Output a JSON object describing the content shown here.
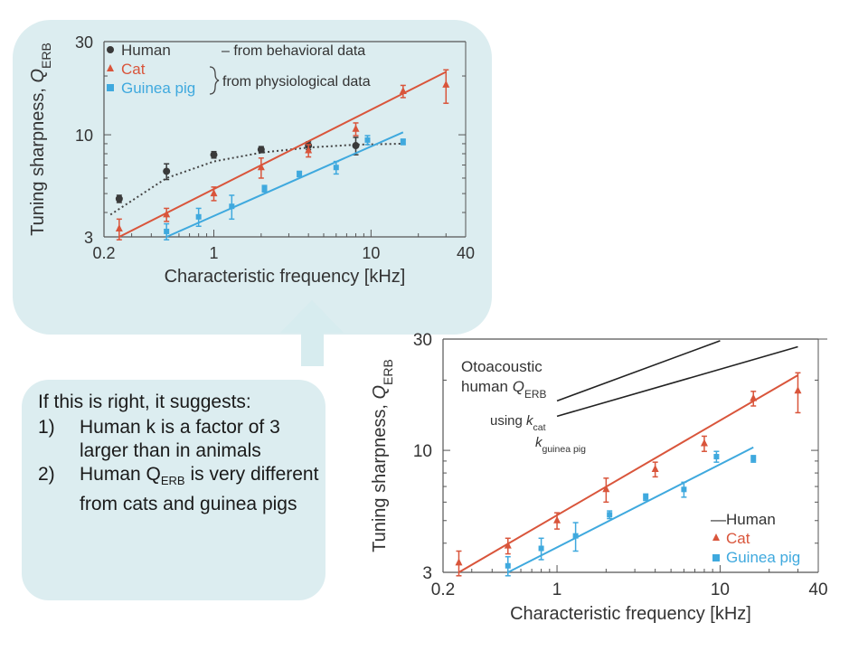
{
  "callout": {
    "intro": "If this is right, it suggests:",
    "items": [
      {
        "num": "1)",
        "text": "Human k is a factor of 3 larger than in animals"
      },
      {
        "num": "2)",
        "pre": "Human Q",
        "sub": "ERB",
        "post": " is very different from cats and guinea pigs"
      }
    ]
  },
  "colors": {
    "panel": "#dcedf0",
    "human": "#3a3a3a",
    "cat": "#d9553b",
    "guinea_pig": "#3fa9de",
    "arrow": "#d7ecef"
  },
  "chart_data": [
    {
      "type": "scatter",
      "xscale": "log",
      "yscale": "log",
      "xlim": [
        0.2,
        40
      ],
      "ylim": [
        3,
        30
      ],
      "xticks": [
        "0.2",
        "1",
        "10",
        "40"
      ],
      "yticks": [
        "3",
        "10",
        "30"
      ],
      "xlabel": "Characteristic frequency [kHz]",
      "ylabel_main": "Tuning sharpness, ",
      "ylabel_sym": "Q",
      "ylabel_sub": "ERB",
      "legend": {
        "placement": "top-left",
        "entries": [
          "Human",
          "Cat",
          "Guinea pig"
        ],
        "note_human": "– from behavioral data",
        "note_physio": "from physiological data"
      },
      "series": [
        {
          "name": "Human",
          "marker": "circle",
          "x": [
            0.25,
            0.5,
            1,
            2,
            4,
            8
          ],
          "y": [
            4.7,
            6.5,
            7.9,
            8.4,
            8.8,
            8.8
          ],
          "err": [
            0.2,
            0.6,
            0.3,
            0.3,
            0.4,
            0.9
          ],
          "fit_x": [
            0.22,
            0.5,
            1,
            2,
            4,
            8,
            16
          ],
          "fit_y": [
            3.9,
            6.0,
            7.3,
            8.1,
            8.6,
            8.9,
            9.0
          ]
        },
        {
          "name": "Cat",
          "marker": "triangle",
          "x": [
            0.25,
            0.5,
            1,
            2,
            4,
            8,
            16,
            30
          ],
          "y": [
            3.3,
            3.9,
            5.0,
            6.8,
            8.3,
            10.7,
            16.7,
            18.0
          ],
          "err": [
            0.4,
            0.3,
            0.4,
            0.8,
            0.6,
            0.8,
            1.2,
            3.5
          ],
          "fit": [
            [
              0.25,
              3.0
            ],
            [
              30,
              21.0
            ]
          ]
        },
        {
          "name": "Guinea pig",
          "marker": "square",
          "x": [
            0.5,
            0.8,
            1.3,
            2.1,
            3.5,
            6,
            9.5,
            16
          ],
          "y": [
            3.2,
            3.8,
            4.3,
            5.3,
            6.3,
            6.8,
            9.4,
            9.2
          ],
          "err": [
            0.3,
            0.4,
            0.6,
            0.2,
            0.2,
            0.5,
            0.5,
            0.3
          ],
          "fit": [
            [
              0.5,
              3.0
            ],
            [
              16,
              10.3
            ]
          ]
        }
      ]
    },
    {
      "type": "scatter",
      "xscale": "log",
      "yscale": "log",
      "xlim": [
        0.2,
        40
      ],
      "ylim": [
        3,
        30
      ],
      "xticks": [
        "0.2",
        "1",
        "10",
        "40"
      ],
      "yticks": [
        "3",
        "10",
        "30"
      ],
      "xlabel": "Characteristic frequency [kHz]",
      "ylabel_main": "Tuning sharpness, ",
      "ylabel_sym": "Q",
      "ylabel_sub": "ERB",
      "annotation": {
        "line1": "Otoacoustic",
        "line2_pre": "human ",
        "line2_sym": "Q",
        "line2_sub": "ERB",
        "k_cat_pre": "using ",
        "k_cat_sym": "k",
        "k_cat_sub": "cat",
        "k_gp_sym": "k",
        "k_gp_sub": "guinea pig"
      },
      "legend": {
        "placement": "bottom-right",
        "entries": [
          "Human",
          "Cat",
          "Guinea pig"
        ],
        "human_prefix": "—"
      },
      "human_lines": [
        {
          "name": "using k_cat",
          "points": [
            [
              1.0,
              16.3
            ],
            [
              10,
              29.5
            ]
          ]
        },
        {
          "name": "using k_guinea pig",
          "points": [
            [
              1.0,
              14.0
            ],
            [
              30,
              27.8
            ]
          ]
        }
      ],
      "series": [
        {
          "name": "Cat",
          "marker": "triangle",
          "x": [
            0.25,
            0.5,
            1,
            2,
            4,
            8,
            16,
            30
          ],
          "y": [
            3.3,
            3.9,
            5.0,
            6.8,
            8.3,
            10.7,
            16.7,
            18.0
          ],
          "err": [
            0.4,
            0.3,
            0.4,
            0.8,
            0.6,
            0.8,
            1.2,
            3.5
          ],
          "fit": [
            [
              0.25,
              3.0
            ],
            [
              30,
              21.0
            ]
          ]
        },
        {
          "name": "Guinea pig",
          "marker": "square",
          "x": [
            0.5,
            0.8,
            1.3,
            2.1,
            3.5,
            6,
            9.5,
            16
          ],
          "y": [
            3.2,
            3.8,
            4.3,
            5.3,
            6.3,
            6.8,
            9.4,
            9.2
          ],
          "err": [
            0.3,
            0.4,
            0.6,
            0.2,
            0.2,
            0.5,
            0.5,
            0.3
          ],
          "fit": [
            [
              0.5,
              3.0
            ],
            [
              16,
              10.3
            ]
          ]
        }
      ]
    }
  ]
}
